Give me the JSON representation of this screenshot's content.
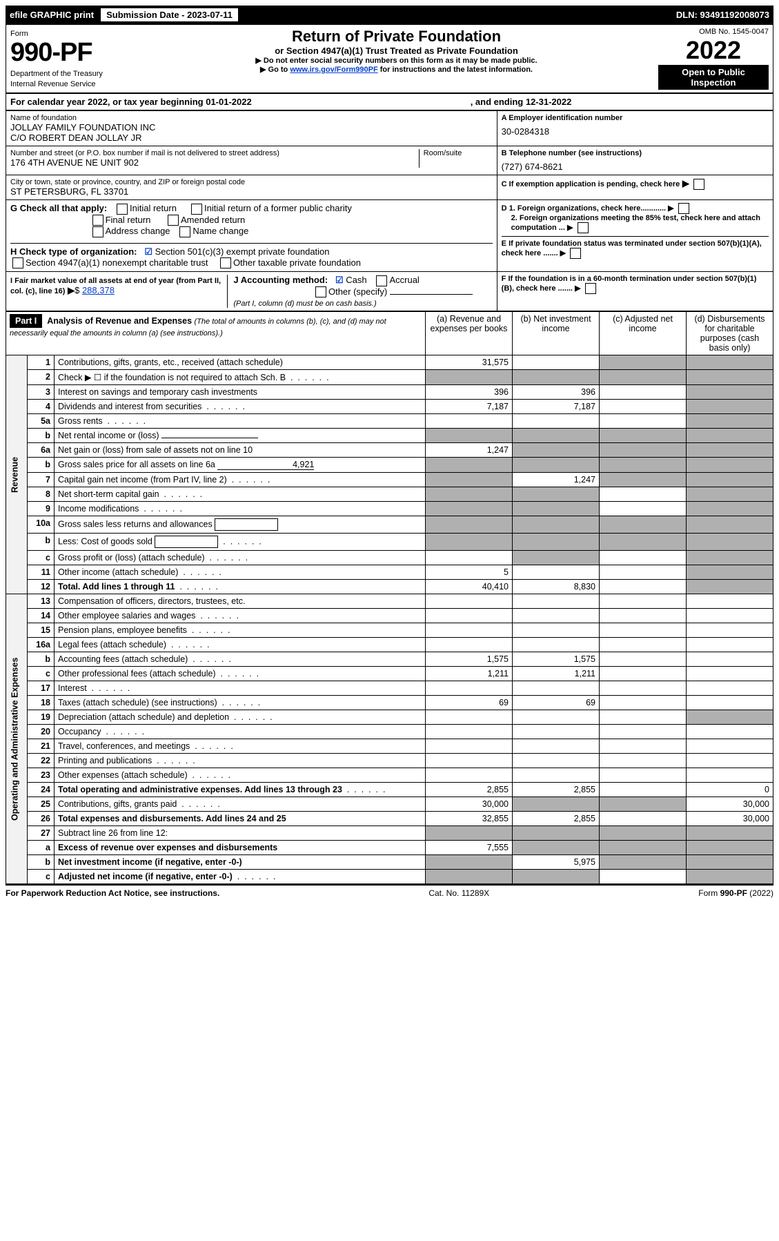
{
  "topbar": {
    "efile": "efile GRAPHIC print",
    "submission_label": "Submission Date - 2023-07-11",
    "dln": "DLN: 93491192008073"
  },
  "header": {
    "form_label": "Form",
    "form_num": "990-PF",
    "dept": "Department of the Treasury",
    "irs": "Internal Revenue Service",
    "title": "Return of Private Foundation",
    "subtitle": "or Section 4947(a)(1) Trust Treated as Private Foundation",
    "note1": "▶ Do not enter social security numbers on this form as it may be made public.",
    "note2_pre": "▶ Go to ",
    "note2_link": "www.irs.gov/Form990PF",
    "note2_post": " for instructions and the latest information.",
    "omb": "OMB No. 1545-0047",
    "year": "2022",
    "open1": "Open to Public",
    "open2": "Inspection"
  },
  "calendar": {
    "line": "For calendar year 2022, or tax year beginning 01-01-2022",
    "ending": ", and ending 12-31-2022"
  },
  "entity": {
    "name_label": "Name of foundation",
    "name1": "JOLLAY FAMILY FOUNDATION INC",
    "name2": "C/O ROBERT DEAN JOLLAY JR",
    "addr_label": "Number and street (or P.O. box number if mail is not delivered to street address)",
    "addr": "176 4TH AVENUE NE UNIT 902",
    "room_label": "Room/suite",
    "city_label": "City or town, state or province, country, and ZIP or foreign postal code",
    "city": "ST PETERSBURG, FL  33701",
    "ein_label": "A Employer identification number",
    "ein": "30-0284318",
    "phone_label": "B Telephone number (see instructions)",
    "phone": "(727) 674-8621",
    "c_label": "C If exemption application is pending, check here",
    "g_label": "G Check all that apply:",
    "g1": "Initial return",
    "g2": "Initial return of a former public charity",
    "g3": "Final return",
    "g4": "Amended return",
    "g5": "Address change",
    "g6": "Name change",
    "h_label": "H Check type of organization:",
    "h1": "Section 501(c)(3) exempt private foundation",
    "h2": "Section 4947(a)(1) nonexempt charitable trust",
    "h3": "Other taxable private foundation",
    "d1": "D 1. Foreign organizations, check here............",
    "d2": "2. Foreign organizations meeting the 85% test, check here and attach computation ...",
    "e_label": "E  If private foundation status was terminated under section 507(b)(1)(A), check here .......",
    "i_label": "I Fair market value of all assets at end of year (from Part II, col. (c), line 16)",
    "i_val": "288,378",
    "j_label": "J Accounting method:",
    "j1": "Cash",
    "j2": "Accrual",
    "j3": "Other (specify)",
    "j_note": "(Part I, column (d) must be on cash basis.)",
    "f_label": "F  If the foundation is in a 60-month termination under section 507(b)(1)(B), check here ......."
  },
  "part1": {
    "header": "Part I",
    "title": "Analysis of Revenue and Expenses",
    "title_note": "(The total of amounts in columns (b), (c), and (d) may not necessarily equal the amounts in column (a) (see instructions).)",
    "col_a": "(a) Revenue and expenses per books",
    "col_b": "(b) Net investment income",
    "col_c": "(c) Adjusted net income",
    "col_d": "(d) Disbursements for charitable purposes (cash basis only)",
    "rev_label": "Revenue",
    "exp_label": "Operating and Administrative Expenses",
    "rows": [
      {
        "n": "1",
        "label": "Contributions, gifts, grants, etc., received (attach schedule)",
        "a": "31,575",
        "b": "",
        "c": "shade",
        "d": "shade"
      },
      {
        "n": "2",
        "label": "Check ▶ ☐ if the foundation is not required to attach Sch. B",
        "dots": true,
        "a": "shade",
        "b": "shade",
        "c": "shade",
        "d": "shade"
      },
      {
        "n": "3",
        "label": "Interest on savings and temporary cash investments",
        "a": "396",
        "b": "396",
        "c": "",
        "d": "shade"
      },
      {
        "n": "4",
        "label": "Dividends and interest from securities",
        "dots": true,
        "a": "7,187",
        "b": "7,187",
        "c": "",
        "d": "shade"
      },
      {
        "n": "5a",
        "label": "Gross rents",
        "dots": true,
        "a": "",
        "b": "",
        "c": "",
        "d": "shade"
      },
      {
        "n": "b",
        "label": "Net rental income or (loss)",
        "underline": true,
        "a": "shade",
        "b": "shade",
        "c": "shade",
        "d": "shade"
      },
      {
        "n": "6a",
        "label": "Net gain or (loss) from sale of assets not on line 10",
        "a": "1,247",
        "b": "shade",
        "c": "shade",
        "d": "shade"
      },
      {
        "n": "b",
        "label": "Gross sales price for all assets on line 6a",
        "underline": true,
        "uval": "4,921",
        "a": "shade",
        "b": "shade",
        "c": "shade",
        "d": "shade"
      },
      {
        "n": "7",
        "label": "Capital gain net income (from Part IV, line 2)",
        "dots": true,
        "a": "shade",
        "b": "1,247",
        "c": "shade",
        "d": "shade"
      },
      {
        "n": "8",
        "label": "Net short-term capital gain",
        "dots": true,
        "a": "shade",
        "b": "shade",
        "c": "",
        "d": "shade"
      },
      {
        "n": "9",
        "label": "Income modifications",
        "dots": true,
        "a": "shade",
        "b": "shade",
        "c": "",
        "d": "shade"
      },
      {
        "n": "10a",
        "label": "Gross sales less returns and allowances",
        "box": true,
        "a": "shade",
        "b": "shade",
        "c": "shade",
        "d": "shade"
      },
      {
        "n": "b",
        "label": "Less: Cost of goods sold",
        "dots": true,
        "box": true,
        "a": "shade",
        "b": "shade",
        "c": "shade",
        "d": "shade"
      },
      {
        "n": "c",
        "label": "Gross profit or (loss) (attach schedule)",
        "dots": true,
        "a": "",
        "b": "shade",
        "c": "",
        "d": "shade"
      },
      {
        "n": "11",
        "label": "Other income (attach schedule)",
        "dots": true,
        "a": "5",
        "b": "",
        "c": "",
        "d": "shade"
      },
      {
        "n": "12",
        "label": "Total. Add lines 1 through 11",
        "dots": true,
        "bold": true,
        "a": "40,410",
        "b": "8,830",
        "c": "",
        "d": "shade"
      }
    ],
    "exp_rows": [
      {
        "n": "13",
        "label": "Compensation of officers, directors, trustees, etc.",
        "a": "",
        "b": "",
        "c": "",
        "d": ""
      },
      {
        "n": "14",
        "label": "Other employee salaries and wages",
        "dots": true,
        "a": "",
        "b": "",
        "c": "",
        "d": ""
      },
      {
        "n": "15",
        "label": "Pension plans, employee benefits",
        "dots": true,
        "a": "",
        "b": "",
        "c": "",
        "d": ""
      },
      {
        "n": "16a",
        "label": "Legal fees (attach schedule)",
        "dots": true,
        "a": "",
        "b": "",
        "c": "",
        "d": ""
      },
      {
        "n": "b",
        "label": "Accounting fees (attach schedule)",
        "dots": true,
        "a": "1,575",
        "b": "1,575",
        "c": "",
        "d": ""
      },
      {
        "n": "c",
        "label": "Other professional fees (attach schedule)",
        "dots": true,
        "a": "1,211",
        "b": "1,211",
        "c": "",
        "d": ""
      },
      {
        "n": "17",
        "label": "Interest",
        "dots": true,
        "a": "",
        "b": "",
        "c": "",
        "d": ""
      },
      {
        "n": "18",
        "label": "Taxes (attach schedule) (see instructions)",
        "dots": true,
        "a": "69",
        "b": "69",
        "c": "",
        "d": ""
      },
      {
        "n": "19",
        "label": "Depreciation (attach schedule) and depletion",
        "dots": true,
        "a": "",
        "b": "",
        "c": "",
        "d": "shade"
      },
      {
        "n": "20",
        "label": "Occupancy",
        "dots": true,
        "a": "",
        "b": "",
        "c": "",
        "d": ""
      },
      {
        "n": "21",
        "label": "Travel, conferences, and meetings",
        "dots": true,
        "a": "",
        "b": "",
        "c": "",
        "d": ""
      },
      {
        "n": "22",
        "label": "Printing and publications",
        "dots": true,
        "a": "",
        "b": "",
        "c": "",
        "d": ""
      },
      {
        "n": "23",
        "label": "Other expenses (attach schedule)",
        "dots": true,
        "a": "",
        "b": "",
        "c": "",
        "d": ""
      },
      {
        "n": "24",
        "label": "Total operating and administrative expenses. Add lines 13 through 23",
        "dots": true,
        "bold": true,
        "a": "2,855",
        "b": "2,855",
        "c": "",
        "d": "0"
      },
      {
        "n": "25",
        "label": "Contributions, gifts, grants paid",
        "dots": true,
        "a": "30,000",
        "b": "shade",
        "c": "shade",
        "d": "30,000"
      },
      {
        "n": "26",
        "label": "Total expenses and disbursements. Add lines 24 and 25",
        "bold": true,
        "a": "32,855",
        "b": "2,855",
        "c": "",
        "d": "30,000"
      },
      {
        "n": "27",
        "label": "Subtract line 26 from line 12:",
        "a": "shade",
        "b": "shade",
        "c": "shade",
        "d": "shade"
      },
      {
        "n": "a",
        "label": "Excess of revenue over expenses and disbursements",
        "bold": true,
        "a": "7,555",
        "b": "shade",
        "c": "shade",
        "d": "shade"
      },
      {
        "n": "b",
        "label": "Net investment income (if negative, enter -0-)",
        "bold": true,
        "a": "shade",
        "b": "5,975",
        "c": "shade",
        "d": "shade"
      },
      {
        "n": "c",
        "label": "Adjusted net income (if negative, enter -0-)",
        "bold": true,
        "dots": true,
        "a": "shade",
        "b": "shade",
        "c": "",
        "d": "shade"
      }
    ]
  },
  "footer": {
    "left": "For Paperwork Reduction Act Notice, see instructions.",
    "mid": "Cat. No. 11289X",
    "right": "Form 990-PF (2022)"
  }
}
